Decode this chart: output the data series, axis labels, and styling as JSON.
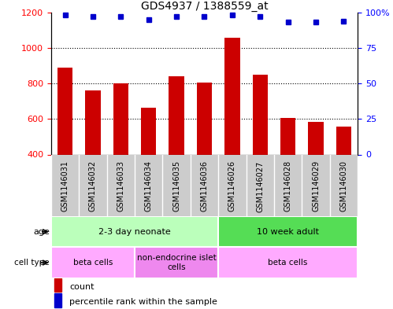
{
  "title": "GDS4937 / 1388559_at",
  "samples": [
    "GSM1146031",
    "GSM1146032",
    "GSM1146033",
    "GSM1146034",
    "GSM1146035",
    "GSM1146036",
    "GSM1146026",
    "GSM1146027",
    "GSM1146028",
    "GSM1146029",
    "GSM1146030"
  ],
  "counts": [
    890,
    760,
    800,
    665,
    840,
    805,
    1055,
    850,
    605,
    582,
    558
  ],
  "percentiles": [
    98,
    97,
    97,
    95,
    97,
    97,
    98,
    97,
    93,
    93,
    94
  ],
  "ylim_left": [
    400,
    1200
  ],
  "ylim_right": [
    0,
    100
  ],
  "yticks_left": [
    400,
    600,
    800,
    1000,
    1200
  ],
  "yticks_right": [
    0,
    25,
    50,
    75,
    100
  ],
  "bar_color": "#cc0000",
  "dot_color": "#0000cc",
  "age_groups": [
    {
      "label": "2-3 day neonate",
      "start": 0,
      "end": 6,
      "color": "#bbffbb"
    },
    {
      "label": "10 week adult",
      "start": 6,
      "end": 11,
      "color": "#55dd55"
    }
  ],
  "cell_type_groups": [
    {
      "label": "beta cells",
      "start": 0,
      "end": 3,
      "color": "#ffaaff"
    },
    {
      "label": "non-endocrine islet\ncells",
      "start": 3,
      "end": 6,
      "color": "#ee88ee"
    },
    {
      "label": "beta cells",
      "start": 6,
      "end": 11,
      "color": "#ffaaff"
    }
  ],
  "grid_lines": [
    600,
    800,
    1000
  ],
  "xlabel_bg": "#dddddd",
  "legend_red_label": "count",
  "legend_blue_label": "percentile rank within the sample",
  "age_label": "age",
  "cell_type_label": "cell type"
}
